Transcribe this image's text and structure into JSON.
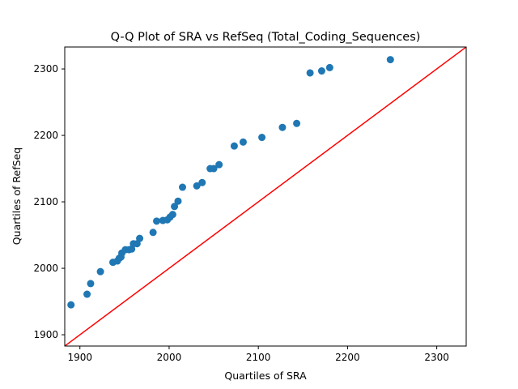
{
  "chart_data": {
    "type": "scatter",
    "title": "Q-Q Plot of SRA vs RefSeq (Total_Coding_Sequences)",
    "xlabel": "Quartiles of SRA",
    "ylabel": "Quartiles of RefSeq",
    "xlim": [
      1883,
      2333
    ],
    "ylim": [
      1883,
      2333
    ],
    "xticks": [
      1900,
      2000,
      2100,
      2200,
      2300
    ],
    "yticks": [
      1900,
      2000,
      2100,
      2200,
      2300
    ],
    "grid": false,
    "marker_color": "#1f77b4",
    "reference_line": {
      "slope": 1,
      "intercept": 0,
      "color": "#ff0000"
    },
    "points": [
      [
        1890,
        1945
      ],
      [
        1908,
        1961
      ],
      [
        1912,
        1977
      ],
      [
        1923,
        1995
      ],
      [
        1937,
        2009
      ],
      [
        1942,
        2011
      ],
      [
        1944,
        2015
      ],
      [
        1946,
        2017
      ],
      [
        1947,
        2023
      ],
      [
        1951,
        2028
      ],
      [
        1955,
        2028
      ],
      [
        1958,
        2029
      ],
      [
        1960,
        2037
      ],
      [
        1964,
        2037
      ],
      [
        1967,
        2045
      ],
      [
        1982,
        2054
      ],
      [
        1986,
        2071
      ],
      [
        1993,
        2072
      ],
      [
        1998,
        2073
      ],
      [
        2001,
        2077
      ],
      [
        2004,
        2081
      ],
      [
        2006,
        2093
      ],
      [
        2010,
        2101
      ],
      [
        2015,
        2122
      ],
      [
        2031,
        2124
      ],
      [
        2037,
        2129
      ],
      [
        2046,
        2150
      ],
      [
        2050,
        2150
      ],
      [
        2056,
        2156
      ],
      [
        2073,
        2184
      ],
      [
        2083,
        2190
      ],
      [
        2104,
        2197
      ],
      [
        2127,
        2212
      ],
      [
        2143,
        2218
      ],
      [
        2158,
        2294
      ],
      [
        2171,
        2297
      ],
      [
        2180,
        2302
      ],
      [
        2248,
        2314
      ]
    ]
  }
}
